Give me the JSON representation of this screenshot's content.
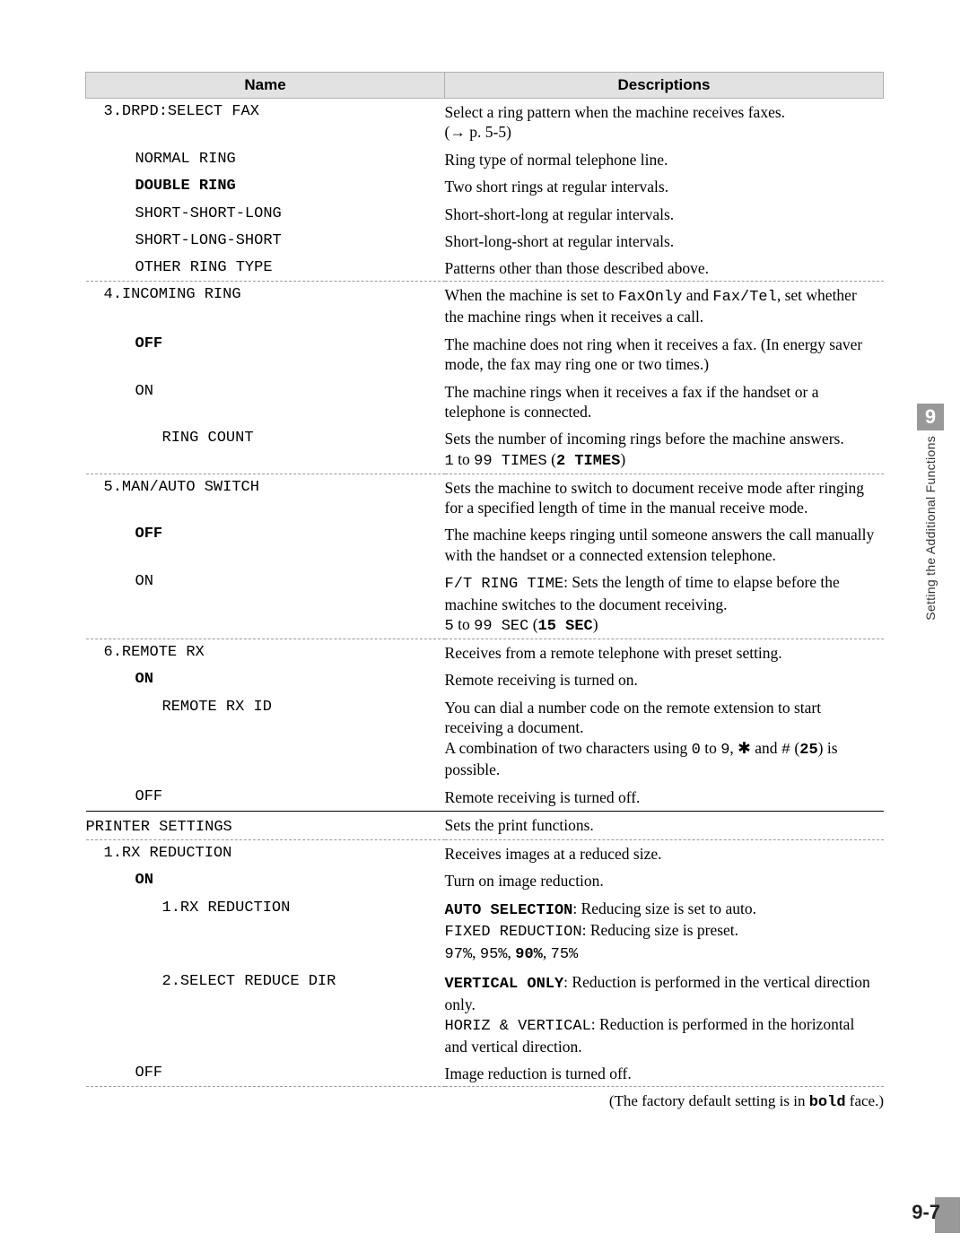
{
  "header": {
    "name": "Name",
    "desc": "Descriptions"
  },
  "rows": [
    {
      "n": "3.DRPD:SELECT FAX",
      "lvl": 1,
      "d": "Select a ring pattern when the machine receives faxes.<br>(→ p. 5-5)"
    },
    {
      "n": "NORMAL RING",
      "lvl": 2,
      "d": "Ring type of normal telephone line."
    },
    {
      "n": "DOUBLE RING",
      "nb": true,
      "lvl": 2,
      "d": "Two short rings at regular intervals."
    },
    {
      "n": "SHORT-SHORT-LONG",
      "lvl": 2,
      "d": "Short-short-long at regular intervals."
    },
    {
      "n": "SHORT-LONG-SHORT",
      "lvl": 2,
      "d": "Short-long-short at regular intervals."
    },
    {
      "n": "OTHER RING TYPE",
      "lvl": 2,
      "d": "Patterns other than those described above.",
      "dash": true
    },
    {
      "n": "4.INCOMING RING",
      "lvl": 1,
      "d": "When the machine is set to <span class='mono'>FaxOnly</span> and <span class='mono'>Fax/Tel</span>, set whether the machine rings when it receives a call."
    },
    {
      "n": "OFF",
      "nb": true,
      "lvl": 2,
      "d": "The machine does not ring when it receives a fax. (In energy saver mode, the fax may ring one or two times.)"
    },
    {
      "n": "ON",
      "lvl": 2,
      "d": "The machine rings when it receives a fax if the handset or a telephone is connected."
    },
    {
      "n": "RING COUNT",
      "lvl": 3,
      "d": "Sets the number of incoming rings before the machine answers.<br><span class='mono'>1</span> to <span class='mono'>99 TIMES</span> (<span class='mono bold'>2 TIMES</span>)",
      "dash": true
    },
    {
      "n": "5.MAN/AUTO SWITCH",
      "lvl": 1,
      "d": "Sets the machine to switch to document receive mode after ringing for a specified length of time in the manual receive mode."
    },
    {
      "n": "OFF",
      "nb": true,
      "lvl": 2,
      "d": "The machine keeps ringing until someone answers the call manually with the handset or a connected extension telephone."
    },
    {
      "n": "ON",
      "lvl": 2,
      "d": "<span class='mono'>F/T RING TIME</span>: Sets the length of time to elapse before the machine switches to the document receiving.<br><span class='mono'>5</span> to <span class='mono'>99 SEC</span> (<span class='mono bold'>15 SEC</span>)",
      "dash": true
    },
    {
      "n": "6.REMOTE RX",
      "lvl": 1,
      "d": "Receives from a remote telephone with preset setting."
    },
    {
      "n": "ON",
      "nb": true,
      "lvl": 2,
      "d": "Remote receiving is turned on."
    },
    {
      "n": "REMOTE RX ID",
      "lvl": 3,
      "d": "You can dial a number code on the remote extension to start receiving a document.<br>A combination of two characters using <span class='mono'>0</span> to <span class='mono'>9</span>, ✱ and <span class='mono'>#</span> (<span class='mono bold'>25</span>) is possible."
    },
    {
      "n": "OFF",
      "lvl": 2,
      "d": "Remote receiving is turned off."
    },
    {
      "n": "PRINTER SETTINGS",
      "lvl": 0,
      "d": "Sets the print functions.",
      "solid": true,
      "dash": true
    },
    {
      "n": "1.RX REDUCTION",
      "lvl": 1,
      "d": "Receives images at a reduced size."
    },
    {
      "n": "ON",
      "nb": true,
      "lvl": 2,
      "d": "Turn on image reduction."
    },
    {
      "n": "1.RX REDUCTION",
      "lvl": 3,
      "d": "<span class='mono bold'>AUTO SELECTION</span>: Reducing size is set to auto.<br><span class='mono'>FIXED REDUCTION</span>: Reducing size is preset.<br><span class='mono'>97%</span>, <span class='mono'>95%</span>, <span class='mono bold'>90%</span>, <span class='mono'>75%</span>"
    },
    {
      "n": "2.SELECT REDUCE DIR",
      "lvl": 3,
      "d": "<span class='mono bold'>VERTICAL ONLY</span>: Reduction is performed in the vertical direction only.<br><span class='mono'>HORIZ & VERTICAL</span>: Reduction is performed in the horizontal and vertical direction."
    },
    {
      "n": "OFF",
      "lvl": 2,
      "d": "Image reduction is turned off.",
      "dash": true
    }
  ],
  "footer": "(The factory default setting is in <span class='mono bold'>bold</span> face.)",
  "side": {
    "num": "9",
    "text": "Setting the Additional Functions"
  },
  "pagenum": "9-7"
}
